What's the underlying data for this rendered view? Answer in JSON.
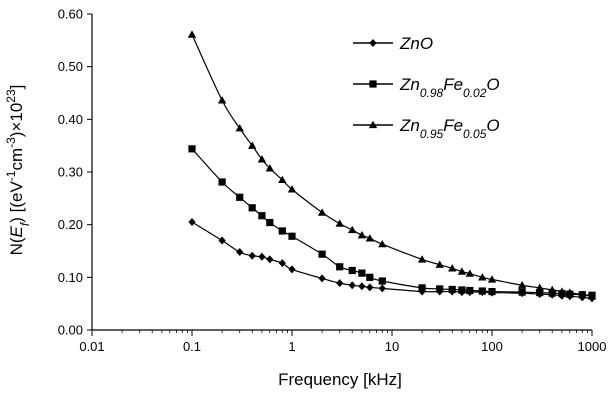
{
  "chart_data": {
    "type": "line",
    "xscale": "log",
    "xlim": [
      0.01,
      1000
    ],
    "ylim": [
      0.0,
      0.6
    ],
    "xticks": [
      "0.01",
      "0.1",
      "1",
      "10",
      "100",
      "1000"
    ],
    "yticks": [
      "0.00",
      "0.10",
      "0.20",
      "0.30",
      "0.40",
      "0.50",
      "0.60"
    ],
    "xlabel": "Frequency [kHz]",
    "ylabel": {
      "prefix": "N(",
      "sym": "E",
      "sub": "f",
      "mid": ") [(eV",
      "sup1": "-1",
      "mid2": "cm",
      "sup2": "-3",
      "mid3": ")×10",
      "sup3": "23",
      "end": "]"
    },
    "legend_position": "top-right",
    "grid": false,
    "series": [
      {
        "name": "ZnO",
        "legend": {
          "base": "ZnO",
          "parts": []
        },
        "marker": "diamond",
        "x": [
          0.1,
          0.2,
          0.3,
          0.4,
          0.5,
          0.6,
          0.8,
          1,
          2,
          3,
          4,
          5,
          6,
          8,
          20,
          30,
          40,
          50,
          60,
          80,
          100,
          200,
          300,
          400,
          500,
          600,
          800,
          1000
        ],
        "y": [
          0.205,
          0.17,
          0.148,
          0.141,
          0.139,
          0.134,
          0.127,
          0.115,
          0.098,
          0.089,
          0.085,
          0.083,
          0.081,
          0.079,
          0.073,
          0.073,
          0.073,
          0.072,
          0.072,
          0.072,
          0.071,
          0.07,
          0.068,
          0.067,
          0.065,
          0.064,
          0.062,
          0.06
        ]
      },
      {
        "name": "Zn0.98Fe0.02O",
        "legend": {
          "base": "Zn",
          "parts": [
            {
              "sub": "0.98"
            },
            {
              "text": "Fe"
            },
            {
              "sub": "0.02"
            },
            {
              "text": "O"
            }
          ]
        },
        "marker": "square",
        "x": [
          0.1,
          0.2,
          0.3,
          0.4,
          0.5,
          0.6,
          0.8,
          1,
          2,
          3,
          4,
          5,
          6,
          8,
          20,
          30,
          40,
          50,
          60,
          80,
          100,
          200,
          300,
          400,
          500,
          600,
          800,
          1000
        ],
        "y": [
          0.344,
          0.281,
          0.252,
          0.232,
          0.217,
          0.204,
          0.188,
          0.178,
          0.144,
          0.12,
          0.113,
          0.108,
          0.1,
          0.093,
          0.08,
          0.078,
          0.077,
          0.076,
          0.075,
          0.074,
          0.073,
          0.072,
          0.071,
          0.07,
          0.069,
          0.068,
          0.067,
          0.066
        ]
      },
      {
        "name": "Zn0.95Fe0.05O",
        "legend": {
          "base": "Zn",
          "parts": [
            {
              "sub": "0.95"
            },
            {
              "text": "Fe"
            },
            {
              "sub": "0.05"
            },
            {
              "text": "O"
            }
          ]
        },
        "marker": "triangle",
        "x": [
          0.1,
          0.2,
          0.3,
          0.4,
          0.5,
          0.6,
          0.8,
          1,
          2,
          3,
          4,
          5,
          6,
          8,
          20,
          30,
          40,
          50,
          60,
          80,
          100,
          200,
          300,
          400,
          500,
          600,
          800,
          1000
        ],
        "y": [
          0.561,
          0.436,
          0.383,
          0.35,
          0.324,
          0.307,
          0.285,
          0.267,
          0.223,
          0.202,
          0.19,
          0.18,
          0.174,
          0.163,
          0.134,
          0.124,
          0.117,
          0.111,
          0.107,
          0.1,
          0.096,
          0.085,
          0.08,
          0.076,
          0.073,
          0.071,
          0.067,
          0.064
        ]
      }
    ]
  }
}
